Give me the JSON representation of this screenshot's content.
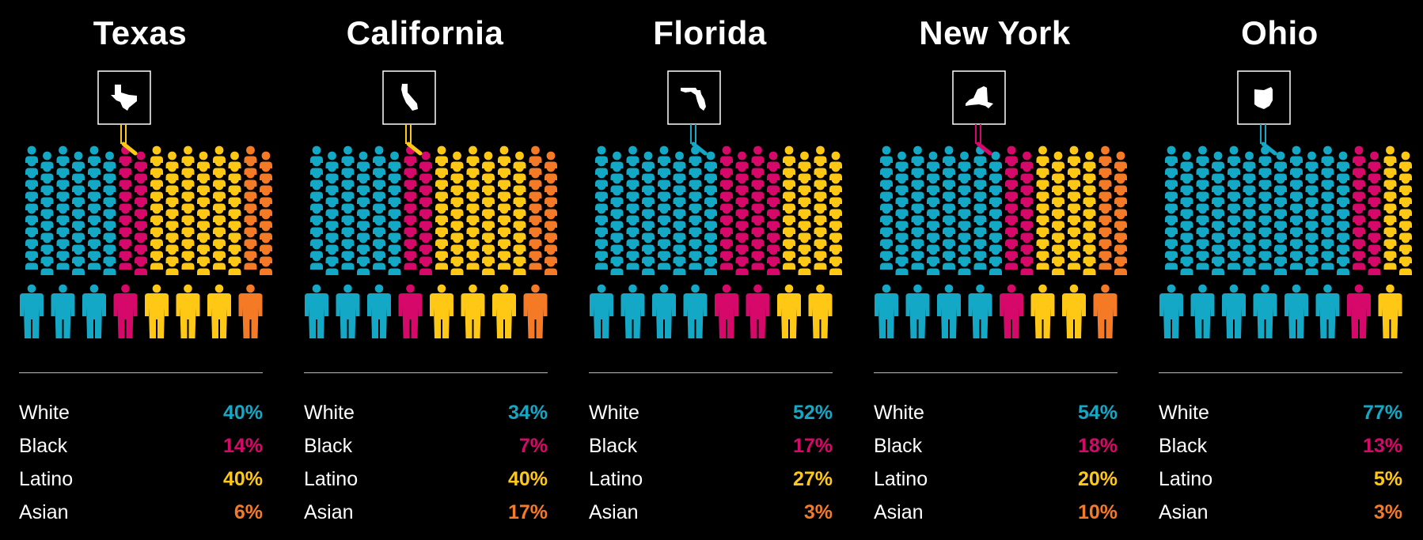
{
  "colors": {
    "background": "#000000",
    "White": "#12a8c6",
    "Black": "#d6086a",
    "Latino": "#ffc814",
    "Asian": "#f47a26",
    "sign_border": "#ffffff",
    "divider": "#bdbdbd"
  },
  "chart_data": [
    {
      "type": "pictograph",
      "title": "Texas",
      "state_icon": "texas-outline-icon",
      "categories": [
        "White",
        "Black",
        "Latino",
        "Asian"
      ],
      "values": [
        40,
        14,
        40,
        6
      ],
      "value_labels": [
        "40%",
        "14%",
        "40%",
        "6%"
      ],
      "unit": "%",
      "sign_holder_group": "Latino"
    },
    {
      "type": "pictograph",
      "title": "California",
      "state_icon": "california-outline-icon",
      "categories": [
        "White",
        "Black",
        "Latino",
        "Asian"
      ],
      "values": [
        34,
        7,
        40,
        17
      ],
      "value_labels": [
        "34%",
        "7%",
        "40%",
        "17%"
      ],
      "unit": "%",
      "sign_holder_group": "Latino"
    },
    {
      "type": "pictograph",
      "title": "Florida",
      "state_icon": "florida-outline-icon",
      "categories": [
        "White",
        "Black",
        "Latino",
        "Asian"
      ],
      "values": [
        52,
        17,
        27,
        3
      ],
      "value_labels": [
        "52%",
        "17%",
        "27%",
        "3%"
      ],
      "unit": "%",
      "sign_holder_group": "White"
    },
    {
      "type": "pictograph",
      "title": "New York",
      "state_icon": "new-york-outline-icon",
      "categories": [
        "White",
        "Black",
        "Latino",
        "Asian"
      ],
      "values": [
        54,
        18,
        20,
        10
      ],
      "value_labels": [
        "54%",
        "18%",
        "20%",
        "10%"
      ],
      "unit": "%",
      "sign_holder_group": "Black"
    },
    {
      "type": "pictograph",
      "title": "Ohio",
      "state_icon": "ohio-outline-icon",
      "categories": [
        "White",
        "Black",
        "Latino",
        "Asian"
      ],
      "values": [
        77,
        13,
        5,
        3
      ],
      "value_labels": [
        "77%",
        "13%",
        "5%",
        "3%"
      ],
      "unit": "%",
      "sign_holder_group": "White"
    }
  ]
}
